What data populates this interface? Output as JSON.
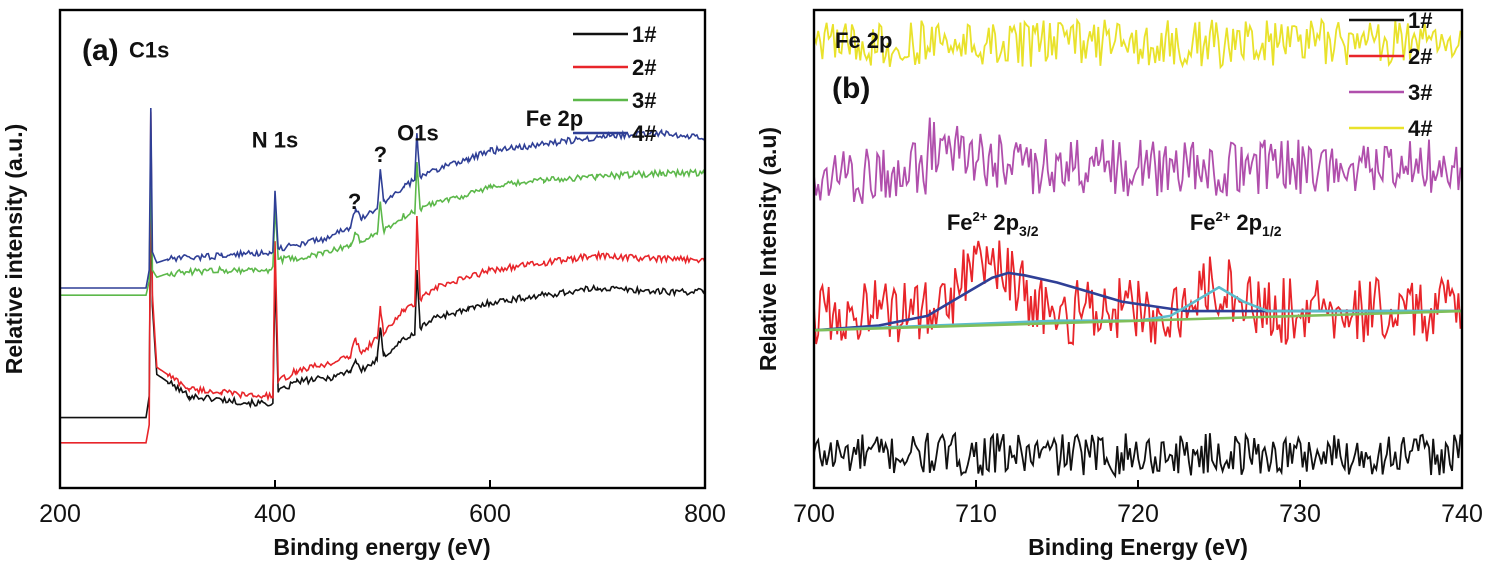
{
  "chart_data": [
    {
      "type": "line",
      "panel_label": "(a)",
      "xlabel": "Binding energy (eV)",
      "ylabel": "Relative intensity (a.u.)",
      "xlim": [
        200,
        800
      ],
      "ylim": [
        0,
        1
      ],
      "x_ticks": [
        200,
        400,
        600,
        800
      ],
      "legend_position": "top-right",
      "series": [
        {
          "name": "1#",
          "color": "#111111",
          "x": [
            200,
            280,
            283,
            284.5,
            286,
            290,
            300,
            320,
            350,
            380,
            398,
            400,
            403,
            420,
            450,
            470,
            475,
            480,
            495,
            498,
            501,
            520,
            530,
            532,
            535,
            550,
            580,
            600,
            650,
            700,
            760,
            800
          ],
          "y": [
            0.14,
            0.14,
            0.2,
            0.78,
            0.45,
            0.26,
            0.24,
            0.2,
            0.19,
            0.18,
            0.18,
            0.53,
            0.21,
            0.24,
            0.25,
            0.27,
            0.3,
            0.27,
            0.3,
            0.39,
            0.31,
            0.36,
            0.37,
            0.55,
            0.39,
            0.42,
            0.44,
            0.46,
            0.48,
            0.5,
            0.49,
            0.49
          ]
        },
        {
          "name": "2#",
          "color": "#e8252a",
          "x": [
            200,
            280,
            283,
            284.5,
            286,
            290,
            300,
            320,
            350,
            380,
            398,
            400,
            403,
            420,
            450,
            470,
            475,
            480,
            495,
            498,
            501,
            520,
            530,
            532,
            535,
            550,
            580,
            600,
            650,
            700,
            760,
            800
          ],
          "y": [
            0.07,
            0.07,
            0.12,
            0.99,
            0.48,
            0.28,
            0.26,
            0.22,
            0.21,
            0.2,
            0.2,
            0.63,
            0.24,
            0.27,
            0.29,
            0.31,
            0.36,
            0.32,
            0.36,
            0.45,
            0.37,
            0.44,
            0.45,
            0.7,
            0.47,
            0.5,
            0.53,
            0.55,
            0.57,
            0.59,
            0.58,
            0.58
          ]
        },
        {
          "name": "3#",
          "color": "#5cb84a",
          "x": [
            200,
            280,
            283,
            284.5,
            286,
            290,
            300,
            350,
            395,
            398,
            400,
            403,
            420,
            450,
            470,
            475,
            480,
            495,
            498,
            501,
            520,
            530,
            532,
            535,
            550,
            580,
            600,
            650,
            700,
            760,
            800
          ],
          "y": [
            0.48,
            0.48,
            0.52,
            0.86,
            0.55,
            0.53,
            0.54,
            0.55,
            0.55,
            0.56,
            0.72,
            0.58,
            0.58,
            0.6,
            0.62,
            0.65,
            0.63,
            0.65,
            0.74,
            0.66,
            0.7,
            0.71,
            0.85,
            0.72,
            0.74,
            0.76,
            0.78,
            0.8,
            0.81,
            0.82,
            0.82
          ]
        },
        {
          "name": "4#",
          "color": "#2f3f96",
          "x": [
            200,
            280,
            283,
            284.5,
            286,
            290,
            300,
            350,
            395,
            398,
            400,
            403,
            420,
            450,
            470,
            475,
            480,
            495,
            498,
            501,
            520,
            530,
            532,
            535,
            550,
            580,
            600,
            650,
            700,
            760,
            800
          ],
          "y": [
            0.5,
            0.5,
            0.55,
            1.0,
            0.6,
            0.57,
            0.58,
            0.59,
            0.6,
            0.6,
            0.77,
            0.61,
            0.62,
            0.64,
            0.67,
            0.72,
            0.69,
            0.72,
            0.83,
            0.74,
            0.78,
            0.8,
            0.93,
            0.81,
            0.83,
            0.86,
            0.88,
            0.9,
            0.92,
            0.93,
            0.92
          ]
        }
      ],
      "annotations": [
        {
          "text": "C1s",
          "x": 283,
          "y": 1.14
        },
        {
          "text": "N 1s",
          "x": 400,
          "y": 0.89
        },
        {
          "text": "?",
          "x": 474,
          "y": 0.72
        },
        {
          "text": "?",
          "x": 498,
          "y": 0.85
        },
        {
          "text": "O1s",
          "x": 533,
          "y": 0.91
        },
        {
          "text": "Fe 2p",
          "x": 660,
          "y": 0.95
        }
      ]
    },
    {
      "type": "line",
      "panel_label": "(b)",
      "title": "Fe 2p",
      "xlabel": "Binding Energy (eV)",
      "ylabel": "Relative Intensity (a.u)",
      "xlim": [
        700,
        740
      ],
      "ylim": [
        0,
        1
      ],
      "x_ticks": [
        700,
        710,
        720,
        730,
        740
      ],
      "legend_position": "top-right",
      "series": [
        {
          "name": "1#",
          "color": "#111111",
          "baseline": 0.07,
          "noise": 0.045
        },
        {
          "name": "2#",
          "color": "#e8252a",
          "baseline": 0.37,
          "noise": 0.07,
          "peaks": [
            {
              "x": 710.8,
              "height": 0.12,
              "width": 2.0
            },
            {
              "x": 724.8,
              "height": 0.06,
              "width": 1.8
            }
          ]
        },
        {
          "name": "3#",
          "color": "#b04fac",
          "baseline": 0.67,
          "noise": 0.06,
          "step": {
            "x": 707,
            "delta": 0.06
          }
        },
        {
          "name": "4#",
          "color": "#e9e22b",
          "baseline": 0.93,
          "noise": 0.05
        }
      ],
      "fit_curves": [
        {
          "name": "Fe2+ 2p3/2 fit",
          "color": "#2f3f96",
          "x": [
            700,
            704,
            707,
            709,
            711,
            712,
            713,
            715,
            717,
            719,
            721,
            723,
            725,
            727,
            730,
            734,
            740
          ],
          "y": [
            0.33,
            0.34,
            0.36,
            0.4,
            0.44,
            0.45,
            0.445,
            0.43,
            0.41,
            0.39,
            0.38,
            0.37,
            0.37,
            0.37,
            0.37,
            0.37,
            0.37
          ]
        },
        {
          "name": "Fe2+ 2p1/2 fit",
          "color": "#5bbccc",
          "x": [
            700,
            715,
            720,
            722,
            723.5,
            725,
            726.5,
            728,
            730,
            735,
            740
          ],
          "y": [
            0.33,
            0.35,
            0.35,
            0.36,
            0.39,
            0.42,
            0.39,
            0.37,
            0.37,
            0.37,
            0.37
          ]
        },
        {
          "name": "background",
          "color": "#7fbf5a",
          "x": [
            700,
            740
          ],
          "y": [
            0.33,
            0.37
          ]
        }
      ],
      "annotations": [
        {
          "text": "Fe",
          "sup": "2+",
          "mid": "2p",
          "sub": "3/2",
          "x": 708.2,
          "y": 0.54
        },
        {
          "text": "Fe",
          "sup": "2+",
          "mid": "2p",
          "sub": "1/2",
          "x": 723.2,
          "y": 0.54
        }
      ]
    }
  ]
}
